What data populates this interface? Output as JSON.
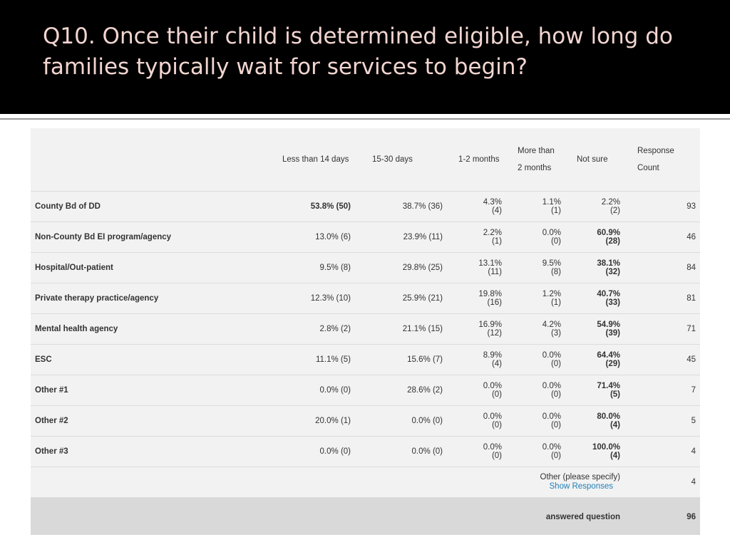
{
  "slide": {
    "title": "Q10. Once their child is determined eligible, how long do families typically wait for services to begin?"
  },
  "table": {
    "headers": [
      "",
      "Less than 14 days",
      "15-30 days",
      "1-2 months",
      "More than 2 months",
      "Not sure",
      "Response Count"
    ],
    "rows": [
      {
        "label": "County Bd of DD",
        "c1": "53.8% (50)",
        "c1_bold": true,
        "c2": "38.7% (36)",
        "c3_pct": "4.3%",
        "c3_cnt": "(4)",
        "c4_pct": "1.1%",
        "c4_cnt": "(1)",
        "c5_pct": "2.2%",
        "c5_cnt": "(2)",
        "c5_bold": false,
        "count": "93"
      },
      {
        "label": "Non-County Bd EI program/agency",
        "c1": "13.0% (6)",
        "c1_bold": false,
        "c2": "23.9% (11)",
        "c3_pct": "2.2%",
        "c3_cnt": "(1)",
        "c4_pct": "0.0%",
        "c4_cnt": "(0)",
        "c5_pct": "60.9%",
        "c5_cnt": "(28)",
        "c5_bold": true,
        "count": "46"
      },
      {
        "label": "Hospital/Out-patient",
        "c1": "9.5% (8)",
        "c1_bold": false,
        "c2": "29.8% (25)",
        "c3_pct": "13.1%",
        "c3_cnt": "(11)",
        "c4_pct": "9.5%",
        "c4_cnt": "(8)",
        "c5_pct": "38.1%",
        "c5_cnt": "(32)",
        "c5_bold": true,
        "count": "84"
      },
      {
        "label": "Private therapy practice/agency",
        "c1": "12.3% (10)",
        "c1_bold": false,
        "c2": "25.9% (21)",
        "c3_pct": "19.8%",
        "c3_cnt": "(16)",
        "c4_pct": "1.2%",
        "c4_cnt": "(1)",
        "c5_pct": "40.7%",
        "c5_cnt": "(33)",
        "c5_bold": true,
        "count": "81"
      },
      {
        "label": "Mental health agency",
        "c1": "2.8% (2)",
        "c1_bold": false,
        "c2": "21.1% (15)",
        "c3_pct": "16.9%",
        "c3_cnt": "(12)",
        "c4_pct": "4.2%",
        "c4_cnt": "(3)",
        "c5_pct": "54.9%",
        "c5_cnt": "(39)",
        "c5_bold": true,
        "count": "71"
      },
      {
        "label": "ESC",
        "c1": "11.1% (5)",
        "c1_bold": false,
        "c2": "15.6% (7)",
        "c3_pct": "8.9%",
        "c3_cnt": "(4)",
        "c4_pct": "0.0%",
        "c4_cnt": "(0)",
        "c5_pct": "64.4%",
        "c5_cnt": "(29)",
        "c5_bold": true,
        "count": "45"
      },
      {
        "label": "Other #1",
        "c1": "0.0% (0)",
        "c1_bold": false,
        "c2": "28.6% (2)",
        "c3_pct": "0.0%",
        "c3_cnt": "(0)",
        "c4_pct": "0.0%",
        "c4_cnt": "(0)",
        "c5_pct": "71.4%",
        "c5_cnt": "(5)",
        "c5_bold": true,
        "count": "7"
      },
      {
        "label": "Other #2",
        "c1": "20.0% (1)",
        "c1_bold": false,
        "c2": "0.0% (0)",
        "c3_pct": "0.0%",
        "c3_cnt": "(0)",
        "c4_pct": "0.0%",
        "c4_cnt": "(0)",
        "c5_pct": "80.0%",
        "c5_cnt": "(4)",
        "c5_bold": true,
        "count": "5"
      },
      {
        "label": "Other #3",
        "c1": "0.0% (0)",
        "c1_bold": false,
        "c2": "0.0% (0)",
        "c3_pct": "0.0%",
        "c3_cnt": "(0)",
        "c4_pct": "0.0%",
        "c4_cnt": "(0)",
        "c5_pct": "100.0%",
        "c5_cnt": "(4)",
        "c5_bold": true,
        "count": "4"
      }
    ],
    "other_specify": {
      "label": "Other (please specify)",
      "link": "Show Responses",
      "count": "4"
    },
    "answered": {
      "label": "answered question",
      "count": "96"
    }
  },
  "colors": {
    "title": "#f2d5d0",
    "link": "#1e7fb8",
    "table_bg": "#f2f2f2",
    "footer_bg": "#d9d9d9"
  }
}
